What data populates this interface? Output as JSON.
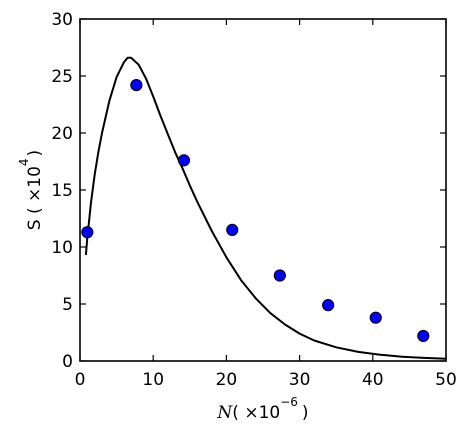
{
  "chart_data": {
    "type": "scatter",
    "xlim": [
      0,
      50
    ],
    "ylim": [
      0,
      30
    ],
    "x_ticks": [
      0,
      10,
      20,
      30,
      40,
      50
    ],
    "y_ticks": [
      0,
      5,
      10,
      15,
      20,
      25,
      30
    ],
    "xlabel": {
      "symbol": "N",
      "prefix": "( ×10",
      "exponent": "−6",
      "suffix": ")"
    },
    "ylabel": {
      "prefix": "S ( ×10",
      "exponent": "4",
      "suffix": ")"
    },
    "grid": false,
    "points": {
      "x": [
        1,
        7.7,
        14.2,
        20.8,
        27.3,
        33.9,
        40.4,
        46.9
      ],
      "y": [
        11.3,
        24.2,
        17.6,
        11.5,
        7.5,
        4.9,
        3.8,
        2.2
      ],
      "color": "#0000ff"
    },
    "curve": {
      "x": [
        0.8,
        1.0,
        1.5,
        2,
        2.5,
        3,
        4,
        5,
        6,
        6.5,
        7,
        8,
        9,
        10,
        11,
        12,
        13,
        14,
        15,
        16,
        18,
        20,
        22,
        24,
        26,
        28,
        30,
        32,
        35,
        38,
        41,
        44,
        47,
        50
      ],
      "y": [
        9.3,
        10.8,
        13.9,
        16.3,
        18.3,
        20.0,
        22.8,
        24.9,
        26.2,
        26.6,
        26.6,
        26.0,
        24.8,
        23.2,
        21.5,
        19.9,
        18.3,
        16.9,
        15.4,
        14.0,
        11.4,
        9.1,
        7.1,
        5.5,
        4.2,
        3.2,
        2.4,
        1.8,
        1.2,
        0.8,
        0.55,
        0.38,
        0.27,
        0.2
      ],
      "color": "#000000"
    }
  }
}
